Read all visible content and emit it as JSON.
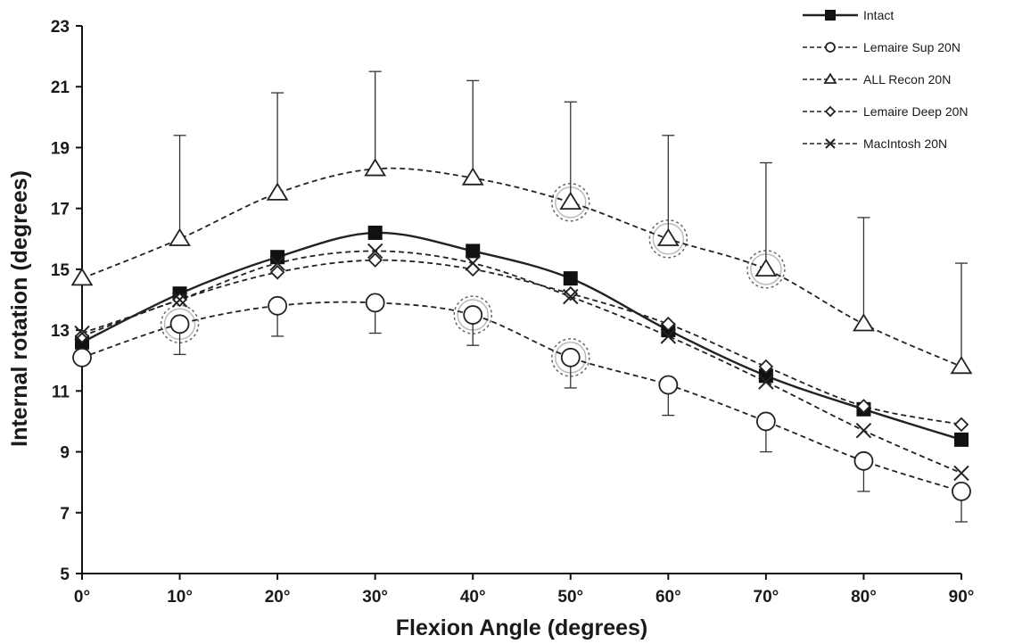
{
  "chart_data": {
    "type": "line",
    "title": "",
    "xlabel": "Flexion Angle (degrees)",
    "ylabel": "Internal rotation (degrees)",
    "categories": [
      "0°",
      "10°",
      "20°",
      "30°",
      "40°",
      "50°",
      "60°",
      "70°",
      "80°",
      "90°"
    ],
    "x": [
      0,
      10,
      20,
      30,
      40,
      50,
      60,
      70,
      80,
      90
    ],
    "ylim": [
      5,
      23
    ],
    "yticks": [
      "5",
      "7",
      "9",
      "11",
      "13",
      "15",
      "17",
      "19",
      "21",
      "23"
    ],
    "grid": false,
    "legend_position": "top-right",
    "series": [
      {
        "name": "Intact",
        "marker": "square-filled",
        "line": "solid",
        "values": [
          12.6,
          14.2,
          15.4,
          16.2,
          15.6,
          14.7,
          13.0,
          11.5,
          10.4,
          9.4
        ]
      },
      {
        "name": "Lemaire Sup 20N",
        "marker": "circle-open",
        "line": "dashed",
        "values": [
          12.1,
          13.2,
          13.8,
          13.9,
          13.5,
          12.1,
          11.2,
          10.0,
          8.7,
          7.7
        ],
        "error_lower": [
          null,
          1.0,
          1.0,
          1.0,
          1.0,
          1.0,
          1.0,
          1.0,
          1.0,
          1.0
        ],
        "significant": [
          false,
          true,
          false,
          false,
          true,
          true,
          false,
          false,
          false,
          false
        ]
      },
      {
        "name": "ALL Recon 20N",
        "marker": "triangle-open",
        "line": "dashed",
        "values": [
          14.7,
          16.0,
          17.5,
          18.3,
          18.0,
          17.2,
          16.0,
          15.0,
          13.2,
          11.8
        ],
        "error_upper": [
          null,
          3.4,
          3.3,
          3.2,
          3.2,
          3.3,
          3.4,
          3.5,
          3.5,
          3.4
        ],
        "significant": [
          false,
          false,
          false,
          false,
          false,
          true,
          true,
          true,
          false,
          false
        ]
      },
      {
        "name": "Lemaire Deep 20N",
        "marker": "diamond-open",
        "line": "dashed",
        "values": [
          12.8,
          14.0,
          14.9,
          15.3,
          15.0,
          14.2,
          13.2,
          11.8,
          10.5,
          9.9
        ]
      },
      {
        "name": "MacIntosh 20N",
        "marker": "x",
        "line": "dashed",
        "values": [
          12.9,
          14.0,
          15.2,
          15.6,
          15.2,
          14.1,
          12.8,
          11.3,
          9.7,
          8.3
        ]
      }
    ]
  }
}
